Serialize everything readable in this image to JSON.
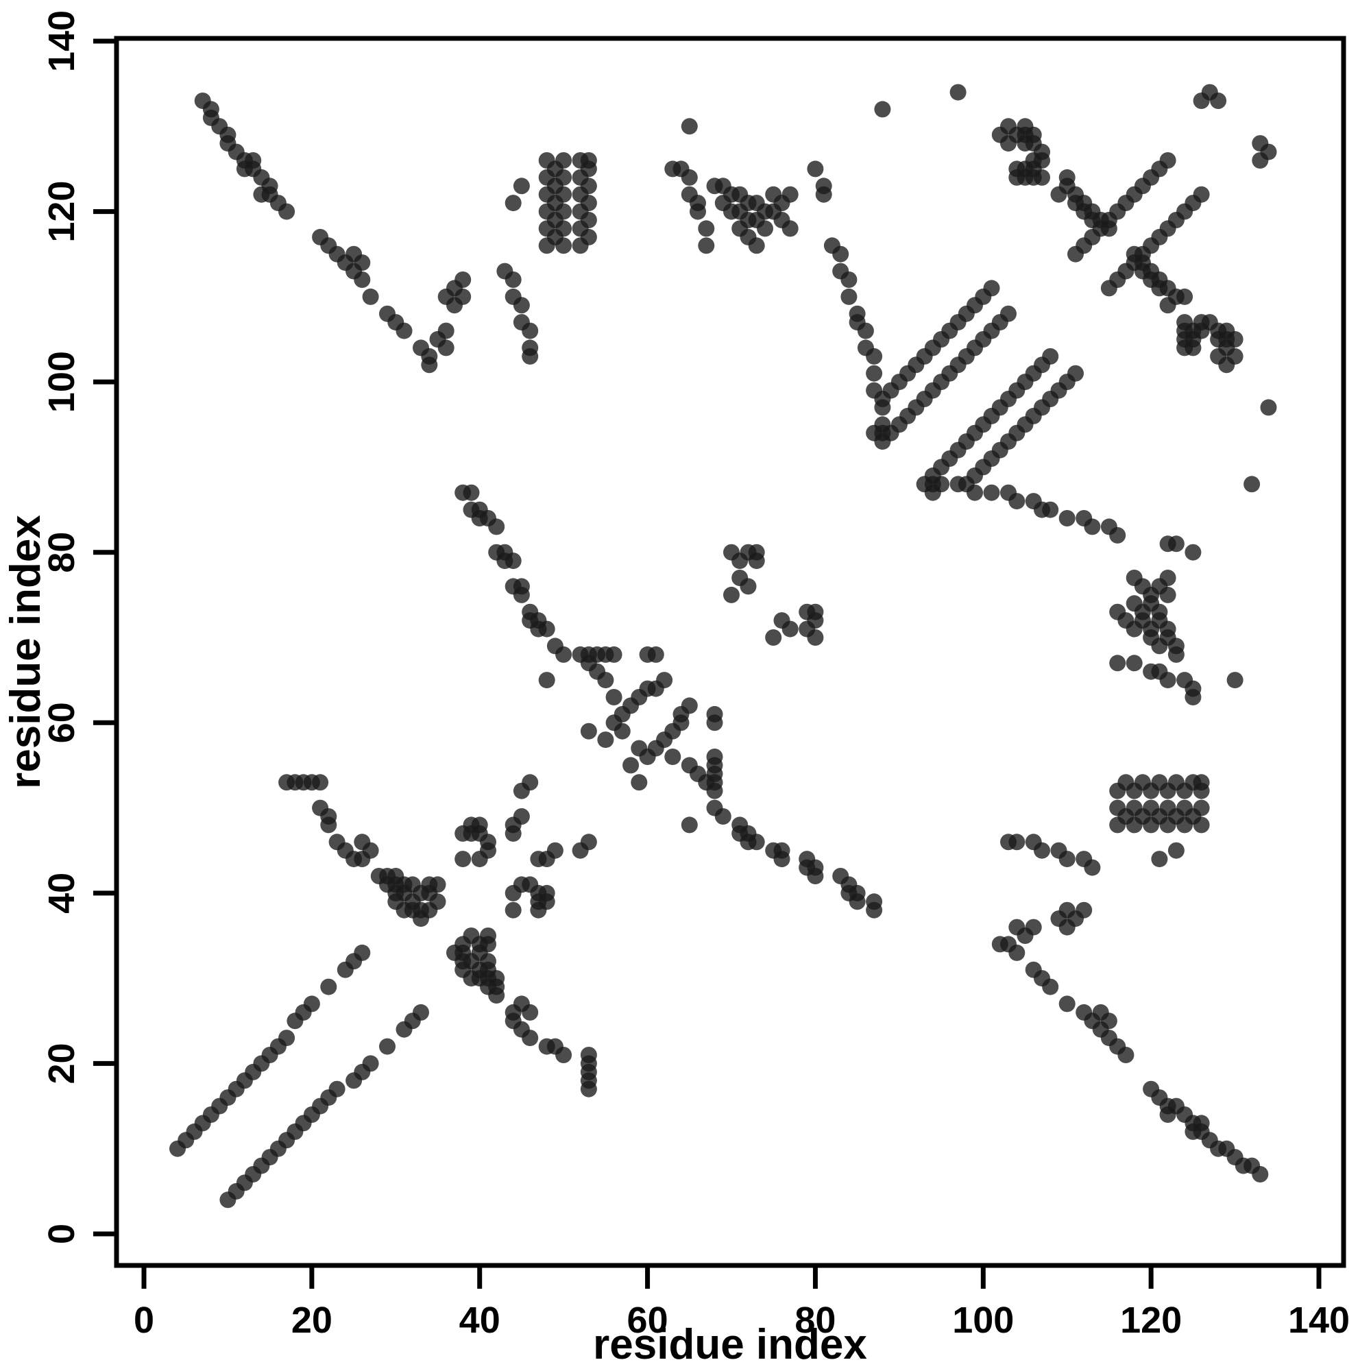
{
  "chart_data": {
    "type": "scatter",
    "title": "",
    "xlabel": "residue index",
    "ylabel": "residue index",
    "xlim": [
      0,
      140
    ],
    "ylim": [
      0,
      140
    ],
    "xticks": [
      0,
      20,
      40,
      60,
      80,
      100,
      120,
      140
    ],
    "yticks": [
      0,
      20,
      40,
      60,
      80,
      100,
      120,
      140
    ],
    "grid": false,
    "legend": "none",
    "symmetric": true,
    "marker": {
      "shape": "circle",
      "color": "#1a1a1a",
      "opacity": 0.78,
      "radius_px": 12
    },
    "points": [
      [
        4,
        10
      ],
      [
        5,
        11
      ],
      [
        6,
        12
      ],
      [
        7,
        13
      ],
      [
        8,
        14
      ],
      [
        9,
        15
      ],
      [
        10,
        16
      ],
      [
        11,
        17
      ],
      [
        12,
        18
      ],
      [
        13,
        19
      ],
      [
        14,
        20
      ],
      [
        15,
        21
      ],
      [
        16,
        22
      ],
      [
        17,
        23
      ],
      [
        18,
        25
      ],
      [
        19,
        26
      ],
      [
        20,
        27
      ],
      [
        22,
        29
      ],
      [
        24,
        31
      ],
      [
        25,
        32
      ],
      [
        26,
        33
      ],
      [
        28,
        42
      ],
      [
        29,
        41
      ],
      [
        29,
        42
      ],
      [
        30,
        39
      ],
      [
        30,
        40
      ],
      [
        30,
        41
      ],
      [
        30,
        42
      ],
      [
        31,
        38
      ],
      [
        31,
        40
      ],
      [
        31,
        41
      ],
      [
        32,
        38
      ],
      [
        32,
        39
      ],
      [
        32,
        41
      ],
      [
        33,
        37
      ],
      [
        33,
        38
      ],
      [
        33,
        40
      ],
      [
        34,
        38
      ],
      [
        34,
        40
      ],
      [
        34,
        41
      ],
      [
        35,
        39
      ],
      [
        35,
        41
      ],
      [
        17,
        53
      ],
      [
        18,
        53
      ],
      [
        19,
        53
      ],
      [
        20,
        53
      ],
      [
        21,
        53
      ],
      [
        21,
        50
      ],
      [
        22,
        49
      ],
      [
        22,
        48
      ],
      [
        23,
        46
      ],
      [
        24,
        45
      ],
      [
        25,
        44
      ],
      [
        26,
        44
      ],
      [
        27,
        45
      ],
      [
        26,
        46
      ],
      [
        38,
        44
      ],
      [
        38,
        47
      ],
      [
        39,
        47
      ],
      [
        39,
        48
      ],
      [
        40,
        47
      ],
      [
        40,
        48
      ],
      [
        41,
        46
      ],
      [
        40,
        44
      ],
      [
        41,
        45
      ],
      [
        44,
        48
      ],
      [
        44,
        47
      ],
      [
        45,
        49
      ],
      [
        46,
        53
      ],
      [
        45,
        52
      ],
      [
        38,
        87
      ],
      [
        39,
        87
      ],
      [
        39,
        85
      ],
      [
        40,
        85
      ],
      [
        40,
        84
      ],
      [
        41,
        84
      ],
      [
        42,
        83
      ],
      [
        42,
        80
      ],
      [
        43,
        80
      ],
      [
        43,
        79
      ],
      [
        44,
        79
      ],
      [
        44,
        76
      ],
      [
        45,
        76
      ],
      [
        45,
        75
      ],
      [
        46,
        73
      ],
      [
        46,
        72
      ],
      [
        47,
        72
      ],
      [
        47,
        71
      ],
      [
        48,
        71
      ],
      [
        49,
        69
      ],
      [
        50,
        68
      ],
      [
        52,
        68
      ],
      [
        53,
        68
      ],
      [
        54,
        68
      ],
      [
        55,
        68
      ],
      [
        56,
        68
      ],
      [
        60,
        68
      ],
      [
        61,
        68
      ],
      [
        48,
        65
      ],
      [
        53,
        59
      ],
      [
        55,
        65
      ],
      [
        54,
        66
      ],
      [
        56,
        63
      ],
      [
        53,
        67
      ],
      [
        55,
        58
      ],
      [
        56,
        60
      ],
      [
        57,
        61
      ],
      [
        58,
        62
      ],
      [
        59,
        63
      ],
      [
        60,
        64
      ],
      [
        61,
        64
      ],
      [
        62,
        65
      ],
      [
        57,
        59
      ],
      [
        70,
        80
      ],
      [
        71,
        79
      ],
      [
        71,
        77
      ],
      [
        72,
        76
      ],
      [
        70,
        75
      ],
      [
        73,
        79
      ],
      [
        72,
        80
      ],
      [
        73,
        80
      ],
      [
        63,
        125
      ],
      [
        64,
        125
      ],
      [
        65,
        124
      ],
      [
        65,
        122
      ],
      [
        66,
        121
      ],
      [
        66,
        120
      ],
      [
        67,
        118
      ],
      [
        67,
        116
      ],
      [
        68,
        123
      ],
      [
        69,
        123
      ],
      [
        69,
        121
      ],
      [
        70,
        122
      ],
      [
        70,
        120
      ],
      [
        71,
        122
      ],
      [
        71,
        120
      ],
      [
        71,
        118
      ],
      [
        72,
        121
      ],
      [
        72,
        119
      ],
      [
        72,
        117
      ],
      [
        73,
        121
      ],
      [
        73,
        119
      ],
      [
        73,
        116
      ],
      [
        74,
        120
      ],
      [
        74,
        118
      ],
      [
        75,
        122
      ],
      [
        75,
        120
      ],
      [
        76,
        121
      ],
      [
        76,
        119
      ],
      [
        77,
        118
      ],
      [
        77,
        122
      ],
      [
        65,
        130
      ],
      [
        80,
        125
      ],
      [
        81,
        123
      ],
      [
        81,
        122
      ],
      [
        82,
        116
      ],
      [
        83,
        115
      ],
      [
        83,
        113
      ],
      [
        84,
        112
      ],
      [
        84,
        110
      ],
      [
        85,
        108
      ],
      [
        85,
        107
      ],
      [
        86,
        106
      ],
      [
        86,
        104
      ],
      [
        87,
        103
      ],
      [
        87,
        101
      ],
      [
        87,
        99
      ],
      [
        88,
        97
      ],
      [
        88,
        95
      ],
      [
        88,
        94
      ],
      [
        87,
        94
      ],
      [
        88,
        93
      ],
      [
        89,
        94
      ],
      [
        90,
        95
      ],
      [
        91,
        96
      ],
      [
        92,
        97
      ],
      [
        93,
        98
      ],
      [
        94,
        99
      ],
      [
        95,
        100
      ],
      [
        96,
        101
      ],
      [
        97,
        102
      ],
      [
        98,
        103
      ],
      [
        99,
        104
      ],
      [
        100,
        105
      ],
      [
        101,
        106
      ],
      [
        102,
        107
      ],
      [
        103,
        108
      ],
      [
        88,
        98
      ],
      [
        89,
        99
      ],
      [
        90,
        100
      ],
      [
        91,
        101
      ],
      [
        92,
        102
      ],
      [
        93,
        103
      ],
      [
        94,
        104
      ],
      [
        95,
        105
      ],
      [
        96,
        106
      ],
      [
        97,
        107
      ],
      [
        98,
        108
      ],
      [
        99,
        109
      ],
      [
        100,
        110
      ],
      [
        101,
        111
      ],
      [
        33,
        104
      ],
      [
        34,
        102
      ],
      [
        34,
        103
      ],
      [
        35,
        105
      ],
      [
        36,
        104
      ],
      [
        36,
        106
      ],
      [
        36,
        110
      ],
      [
        37,
        109
      ],
      [
        37,
        111
      ],
      [
        38,
        110
      ],
      [
        38,
        112
      ],
      [
        43,
        113
      ],
      [
        44,
        112
      ],
      [
        44,
        110
      ],
      [
        45,
        109
      ],
      [
        45,
        107
      ],
      [
        46,
        106
      ],
      [
        46,
        104
      ],
      [
        46,
        103
      ],
      [
        44,
        121
      ],
      [
        45,
        123
      ],
      [
        48,
        126
      ],
      [
        48,
        124
      ],
      [
        48,
        122
      ],
      [
        48,
        120
      ],
      [
        48,
        118
      ],
      [
        48,
        116
      ],
      [
        49,
        125
      ],
      [
        49,
        123
      ],
      [
        49,
        121
      ],
      [
        49,
        119
      ],
      [
        49,
        117
      ],
      [
        50,
        126
      ],
      [
        50,
        124
      ],
      [
        50,
        122
      ],
      [
        50,
        120
      ],
      [
        50,
        118
      ],
      [
        50,
        116
      ],
      [
        52,
        126
      ],
      [
        52,
        124
      ],
      [
        52,
        122
      ],
      [
        52,
        120
      ],
      [
        52,
        118
      ],
      [
        52,
        116
      ],
      [
        53,
        126
      ],
      [
        53,
        125
      ],
      [
        53,
        123
      ],
      [
        53,
        121
      ],
      [
        53,
        119
      ],
      [
        53,
        117
      ],
      [
        7,
        133
      ],
      [
        8,
        132
      ],
      [
        8,
        131
      ],
      [
        9,
        130
      ],
      [
        10,
        129
      ],
      [
        10,
        128
      ],
      [
        11,
        127
      ],
      [
        12,
        126
      ],
      [
        12,
        125
      ],
      [
        13,
        126
      ],
      [
        13,
        125
      ],
      [
        14,
        124
      ],
      [
        14,
        122
      ],
      [
        15,
        123
      ],
      [
        15,
        122
      ],
      [
        16,
        121
      ],
      [
        17,
        120
      ],
      [
        21,
        117
      ],
      [
        22,
        116
      ],
      [
        23,
        115
      ],
      [
        24,
        114
      ],
      [
        25,
        113
      ],
      [
        25,
        115
      ],
      [
        26,
        112
      ],
      [
        26,
        114
      ],
      [
        27,
        110
      ],
      [
        29,
        108
      ],
      [
        30,
        107
      ],
      [
        31,
        106
      ],
      [
        105,
        130
      ],
      [
        106,
        129
      ],
      [
        106,
        128
      ],
      [
        107,
        127
      ],
      [
        105,
        129
      ],
      [
        104,
        124
      ],
      [
        104,
        125
      ],
      [
        105,
        124
      ],
      [
        105,
        125
      ],
      [
        106,
        124
      ],
      [
        106,
        125
      ],
      [
        107,
        124
      ],
      [
        106,
        126
      ],
      [
        107,
        126
      ],
      [
        104,
        129
      ],
      [
        103,
        130
      ],
      [
        105,
        128
      ],
      [
        109,
        122
      ],
      [
        110,
        124
      ],
      [
        110,
        123
      ],
      [
        111,
        122
      ],
      [
        111,
        121
      ],
      [
        112,
        121
      ],
      [
        112,
        120
      ],
      [
        113,
        120
      ],
      [
        113,
        119
      ],
      [
        114,
        119
      ],
      [
        114,
        118
      ],
      [
        115,
        118
      ],
      [
        111,
        115
      ],
      [
        112,
        116
      ],
      [
        113,
        117
      ],
      [
        115,
        119
      ],
      [
        116,
        120
      ],
      [
        117,
        121
      ],
      [
        118,
        122
      ],
      [
        119,
        123
      ],
      [
        120,
        124
      ],
      [
        121,
        125
      ],
      [
        122,
        126
      ],
      [
        126,
        133
      ],
      [
        127,
        134
      ],
      [
        128,
        133
      ],
      [
        97,
        134
      ],
      [
        88,
        132
      ],
      [
        103,
        128
      ],
      [
        102,
        129
      ]
    ]
  }
}
